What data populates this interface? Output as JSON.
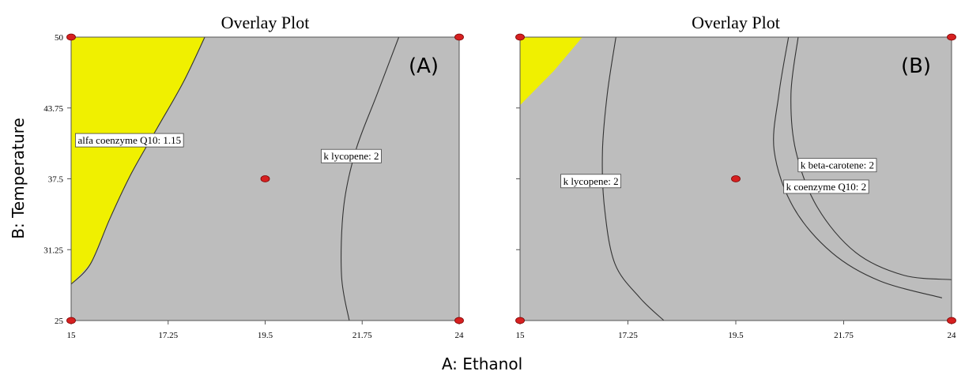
{
  "x_axis_label": "A: Ethanol",
  "y_axis_label": "B: Temperature",
  "colors": {
    "infeasible_region": "#bdbdbd",
    "feasible_region": "#f0f000",
    "design_point": "#d62020",
    "contour_line": "#333333"
  },
  "chart_data": [
    {
      "type": "contour",
      "title": "Overlay Plot",
      "panel_label": "(A)",
      "xlabel": "A: Ethanol",
      "ylabel": "B: Temperature",
      "xlim": [
        15,
        24
      ],
      "ylim": [
        25,
        50
      ],
      "x_ticks": [
        "15",
        "17.25",
        "19.5",
        "21.75",
        "24"
      ],
      "y_ticks": [
        "25",
        "31.25",
        "37.5",
        "43.75",
        "50"
      ],
      "feasible_region_boundary": [
        [
          15,
          50
        ],
        [
          18.1,
          50
        ],
        [
          17.6,
          46
        ],
        [
          17.0,
          42
        ],
        [
          16.4,
          38
        ],
        [
          15.9,
          34
        ],
        [
          15.45,
          30
        ],
        [
          15,
          28.2
        ]
      ],
      "contours": [
        {
          "label": "alfa coenzyme Q10: 1.15",
          "points": [
            [
              18.1,
              50
            ],
            [
              17.6,
              46
            ],
            [
              17.0,
              42
            ],
            [
              16.4,
              38
            ],
            [
              15.9,
              34
            ],
            [
              15.45,
              30
            ],
            [
              15,
              28.2
            ]
          ],
          "label_at": [
            15.1,
            40.8
          ]
        },
        {
          "label": "k lycopene: 2",
          "points": [
            [
              22.6,
              50
            ],
            [
              22.1,
              45
            ],
            [
              21.6,
              40
            ],
            [
              21.32,
              35
            ],
            [
              21.27,
              29
            ],
            [
              21.45,
              25
            ]
          ],
          "label_at": [
            20.8,
            39.4
          ]
        }
      ],
      "design_points": [
        [
          15,
          50
        ],
        [
          24,
          50
        ],
        [
          15,
          25
        ],
        [
          24,
          25
        ],
        [
          19.5,
          37.5
        ]
      ]
    },
    {
      "type": "contour",
      "title": "Overlay Plot",
      "panel_label": "(B)",
      "xlabel": "A: Ethanol",
      "ylabel": "B: Temperature",
      "xlim": [
        15,
        24
      ],
      "ylim": [
        25,
        50
      ],
      "x_ticks": [
        "15",
        "17.25",
        "19.5",
        "21.75",
        "24"
      ],
      "y_ticks": [
        "25",
        "31.25",
        "37.5",
        "43.75",
        "50"
      ],
      "feasible_region_boundary": [
        [
          15,
          50
        ],
        [
          16.3,
          50
        ],
        [
          15.7,
          47
        ],
        [
          15,
          44
        ]
      ],
      "contours": [
        {
          "label": "k lycopene: 2",
          "points": [
            [
              17.0,
              50
            ],
            [
              16.82,
              45
            ],
            [
              16.72,
              40
            ],
            [
              16.76,
              35
            ],
            [
              16.98,
              30
            ],
            [
              17.5,
              27
            ],
            [
              18.0,
              25
            ]
          ],
          "label_at": [
            15.85,
            37.2
          ]
        },
        {
          "label": "k beta-carotene: 2",
          "points": [
            [
              20.8,
              50
            ],
            [
              20.65,
              45
            ],
            [
              20.75,
              40
            ],
            [
              21.2,
              35
            ],
            [
              22.0,
              31
            ],
            [
              23.0,
              29
            ],
            [
              24,
              28.6
            ]
          ],
          "label_at": [
            20.8,
            38.6
          ]
        },
        {
          "label": "k coenzyme Q10: 2",
          "points": [
            [
              20.6,
              50
            ],
            [
              20.4,
              45
            ],
            [
              20.3,
              40
            ],
            [
              20.7,
              35
            ],
            [
              21.5,
              31
            ],
            [
              22.5,
              28.5
            ],
            [
              23.8,
              27
            ]
          ],
          "label_at": [
            20.5,
            36.7
          ]
        }
      ],
      "design_points": [
        [
          15,
          50
        ],
        [
          24,
          50
        ],
        [
          15,
          25
        ],
        [
          24,
          25
        ],
        [
          19.5,
          37.5
        ]
      ]
    }
  ]
}
